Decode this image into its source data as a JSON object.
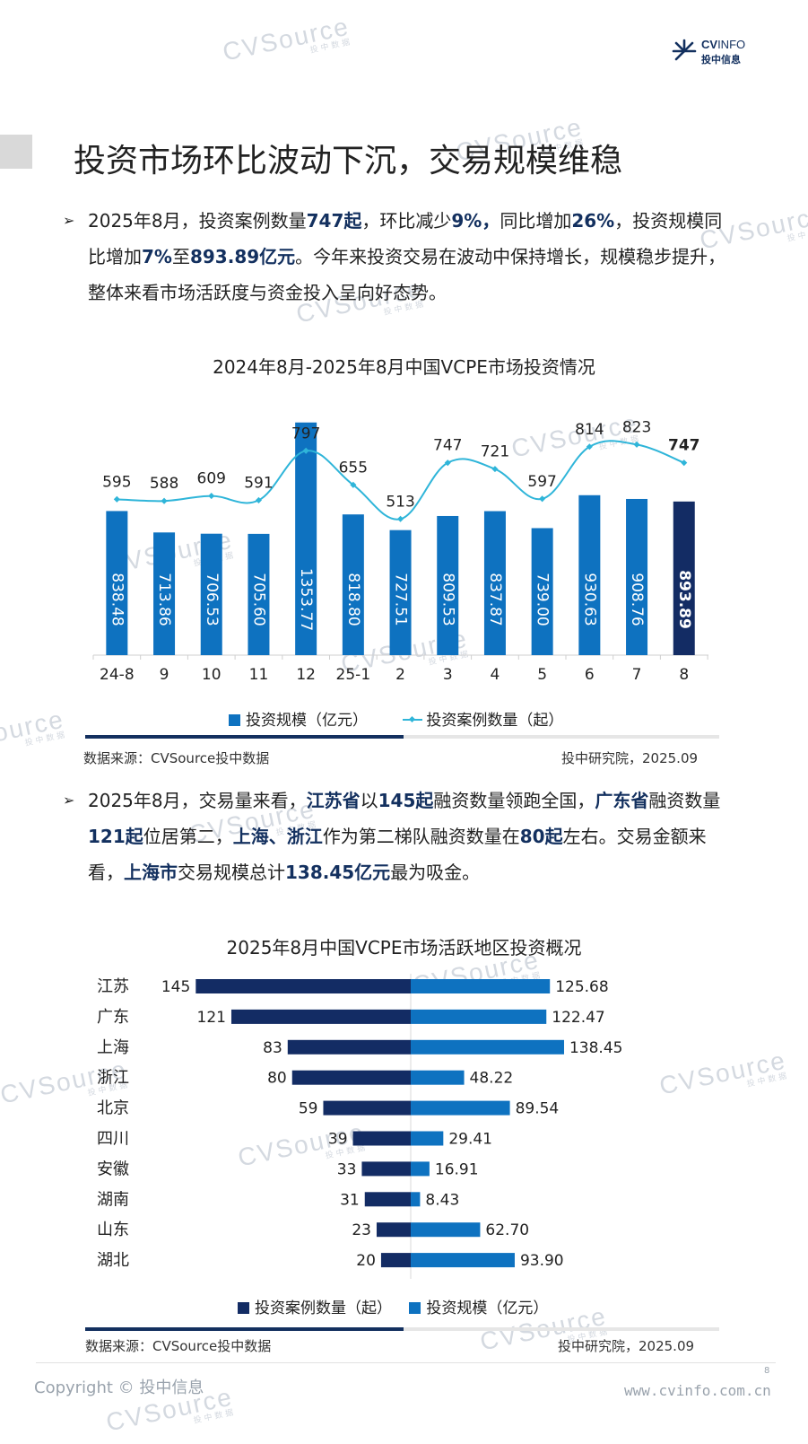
{
  "brand": {
    "logo_cv": "CV",
    "logo_info": "INFO",
    "logo_cn": "投中信息"
  },
  "watermark": {
    "text": "CVSource",
    "sub": "投中数据"
  },
  "title": "投资市场环比波动下沉，交易规模维稳",
  "para1": {
    "bullet": "➢",
    "segments": [
      {
        "t": "2025年8月，投资案例数量"
      },
      {
        "t": "747起",
        "hl": true
      },
      {
        "t": "，环比减少"
      },
      {
        "t": "9%，",
        "hl": true
      },
      {
        "t": "同比增加"
      },
      {
        "t": "26%",
        "hl": true
      },
      {
        "t": "，投资规模同比增加"
      },
      {
        "t": "7%",
        "hl": true
      },
      {
        "t": "至"
      },
      {
        "t": "893.89亿元",
        "hl": true
      },
      {
        "t": "。今年来投资交易在波动中保持增长，规模稳步提升，整体来看市场活跃度与资金投入呈向好态势。"
      }
    ]
  },
  "chart1": {
    "title": "2024年8月-2025年8月中国VCPE市场投资情况",
    "legend_bar": "投资规模（亿元）",
    "legend_line": "投资案例数量（起）",
    "source": "数据来源：CVSource投中数据",
    "publisher": "投中研究院，2025.09"
  },
  "para2": {
    "bullet": "➢",
    "segments": [
      {
        "t": "2025年8月，交易量来看，"
      },
      {
        "t": "江苏省",
        "hl": true
      },
      {
        "t": "以"
      },
      {
        "t": "145起",
        "hl": true
      },
      {
        "t": "融资数量领跑全国，"
      },
      {
        "t": "广东省",
        "hl": true
      },
      {
        "t": "融资数量"
      },
      {
        "t": "121起",
        "hl": true
      },
      {
        "t": "位居第二，"
      },
      {
        "t": "上海、浙江",
        "hl": true
      },
      {
        "t": "作为第二梯队融资数量在"
      },
      {
        "t": "80起",
        "hl": true
      },
      {
        "t": "左右。交易金额来看，"
      },
      {
        "t": "上海市",
        "hl": true
      },
      {
        "t": "交易规模总计"
      },
      {
        "t": "138.45亿元",
        "hl": true
      },
      {
        "t": "最为吸金。"
      }
    ]
  },
  "chart2": {
    "title": "2025年8月中国VCPE市场活跃地区投资概况",
    "legend_left": "投资案例数量（起）",
    "legend_right": "投资规模（亿元）",
    "source": "数据来源：CVSource投中数据",
    "publisher": "投中研究院，2025.09"
  },
  "footer": {
    "copyright": "Copyright © 投中信息",
    "page": "8",
    "url": "www.cvinfo.com.cn"
  },
  "colors": {
    "bar": "#0e72c0",
    "bar_highlight": "#132c64",
    "line": "#2fb5d9",
    "left_bar": "#132c64",
    "right_bar": "#0e72c0",
    "navy": "#13305f"
  },
  "chart_data": [
    {
      "type": "bar+line",
      "title": "2024年8月-2025年8月中国VCPE市场投资情况",
      "categories": [
        "24-8",
        "9",
        "10",
        "11",
        "12",
        "25-1",
        "2",
        "3",
        "4",
        "5",
        "6",
        "7",
        "8"
      ],
      "series": [
        {
          "name": "投资规模（亿元）",
          "type": "bar",
          "values": [
            838.48,
            713.86,
            706.53,
            705.6,
            1353.77,
            818.8,
            727.51,
            809.53,
            837.87,
            739.0,
            930.63,
            908.76,
            893.89
          ],
          "labels": [
            "838.48",
            "713.86",
            "706.53",
            "705.60",
            "1353.77",
            "818.80",
            "727.51",
            "809.53",
            "837.87",
            "739.00",
            "930.63",
            "908.76",
            "893.89"
          ]
        },
        {
          "name": "投资案例数量（起）",
          "type": "line",
          "values": [
            595,
            588,
            609,
            591,
            797,
            655,
            513,
            747,
            721,
            597,
            814,
            823,
            747
          ]
        }
      ],
      "legend": "bottom"
    },
    {
      "type": "bar",
      "orientation": "horizontal-diverging",
      "title": "2025年8月中国VCPE市场活跃地区投资概况",
      "categories": [
        "江苏",
        "广东",
        "上海",
        "浙江",
        "北京",
        "四川",
        "安徽",
        "湖南",
        "山东",
        "湖北"
      ],
      "series": [
        {
          "name": "投资案例数量（起）",
          "values": [
            145,
            121,
            83,
            80,
            59,
            39,
            33,
            31,
            23,
            20
          ]
        },
        {
          "name": "投资规模（亿元）",
          "values": [
            125.68,
            122.47,
            138.45,
            48.22,
            89.54,
            29.41,
            16.91,
            8.43,
            62.7,
            93.9
          ],
          "labels": [
            "125.68",
            "122.47",
            "138.45",
            "48.22",
            "89.54",
            "29.41",
            "16.91",
            "8.43",
            "62.70",
            "93.90"
          ]
        }
      ],
      "legend": "bottom"
    }
  ]
}
